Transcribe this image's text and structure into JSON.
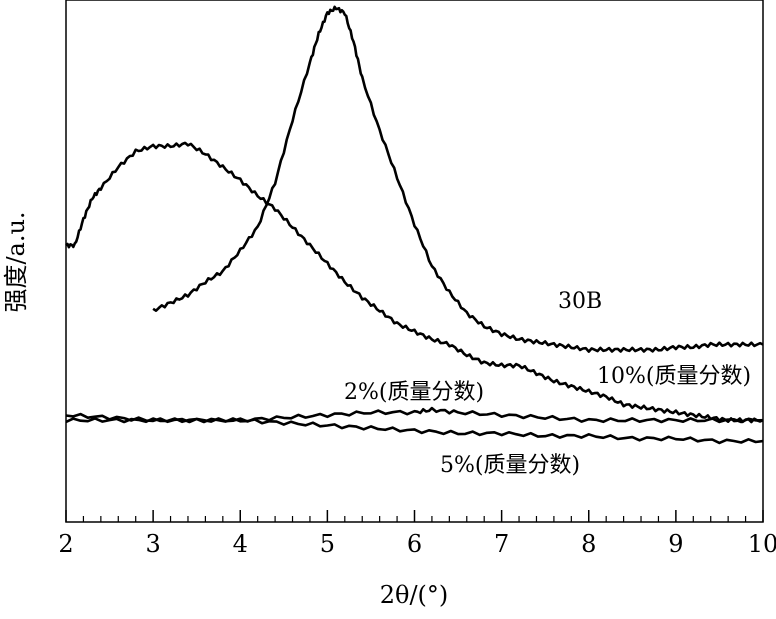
{
  "chart_data": {
    "type": "line",
    "xlabel": "2θ/(°)",
    "ylabel": "强度/a.u.",
    "xlim": [
      2,
      10
    ],
    "ylim": [
      0,
      100
    ],
    "x_ticks": [
      2,
      3,
      4,
      5,
      6,
      7,
      8,
      9,
      10
    ],
    "x_tick_labels": [
      "2",
      "3",
      "4",
      "5",
      "6",
      "7",
      "8",
      "9",
      "10"
    ],
    "grid": false,
    "legend": "inline labels",
    "line_color": "#000000",
    "series": [
      {
        "name": "30B",
        "x": [
          2.0,
          2.1,
          2.2,
          2.3,
          2.4,
          2.6,
          2.8,
          3.0,
          3.2,
          3.4,
          3.6,
          3.8,
          4.0,
          4.2,
          4.4,
          4.6,
          4.8,
          5.0,
          5.2,
          5.4,
          5.6,
          5.8,
          6.0,
          6.2,
          6.4,
          6.6,
          6.8,
          7.0,
          7.2,
          7.4,
          7.6,
          7.8,
          8.0,
          8.2,
          8.4,
          8.6,
          8.8,
          9.0,
          9.2,
          9.4,
          9.6,
          9.8,
          10.0
        ],
        "y": [
          53.0,
          53.0,
          58.0,
          62.0,
          64.0,
          68.0,
          71.0,
          72.0,
          72.0,
          72.5,
          70.5,
          68.0,
          65.5,
          62.5,
          60.0,
          56.5,
          53.0,
          49.5,
          46.0,
          43.0,
          40.5,
          38.0,
          36.5,
          35.0,
          34.0,
          32.0,
          30.5,
          30.0,
          30.0,
          28.5,
          27.0,
          26.0,
          25.0,
          24.0,
          22.5,
          22.0,
          21.5,
          21.0,
          20.5,
          20.0,
          19.5,
          19.5,
          19.5
        ]
      },
      {
        "name": "10%(质量分数)",
        "x": [
          3.0,
          3.2,
          3.4,
          3.6,
          3.8,
          4.0,
          4.2,
          4.4,
          4.6,
          4.8,
          4.9,
          5.0,
          5.1,
          5.2,
          5.3,
          5.4,
          5.6,
          5.8,
          6.0,
          6.2,
          6.4,
          6.6,
          6.8,
          7.0,
          7.2,
          7.4,
          7.6,
          7.8,
          8.0,
          8.2,
          8.4,
          8.6,
          8.8,
          9.0,
          9.2,
          9.4,
          9.6,
          9.8,
          10.0
        ],
        "y": [
          40.5,
          42.0,
          43.5,
          46.0,
          48.0,
          52.0,
          56.5,
          65.0,
          77.0,
          88.0,
          93.5,
          97.5,
          98.5,
          97.5,
          92.0,
          85.0,
          75.0,
          66.0,
          57.0,
          49.0,
          44.0,
          40.0,
          37.5,
          36.0,
          35.0,
          34.5,
          34.0,
          33.5,
          33.0,
          33.0,
          33.0,
          33.0,
          33.0,
          33.5,
          33.5,
          34.0,
          34.0,
          34.0,
          34.0
        ]
      },
      {
        "name": "2%(质量分数)",
        "x": [
          2.0,
          2.5,
          3.0,
          3.5,
          4.0,
          4.5,
          5.0,
          5.5,
          6.0,
          6.2,
          6.5,
          7.0,
          7.5,
          8.0,
          8.5,
          9.0,
          9.5,
          10.0
        ],
        "y": [
          20.5,
          20.0,
          19.5,
          19.5,
          19.5,
          20.0,
          20.5,
          21.0,
          21.0,
          21.5,
          21.0,
          20.5,
          20.0,
          19.5,
          19.5,
          19.5,
          19.5,
          19.5
        ]
      },
      {
        "name": "5%(质量分数)",
        "x": [
          2.0,
          2.5,
          3.0,
          3.5,
          4.0,
          4.5,
          5.0,
          5.5,
          6.0,
          6.5,
          7.0,
          7.5,
          8.0,
          8.5,
          9.0,
          9.5,
          10.0
        ],
        "y": [
          19.5,
          19.5,
          19.5,
          19.5,
          19.5,
          19.0,
          18.5,
          18.0,
          17.5,
          17.0,
          17.0,
          16.5,
          16.5,
          16.0,
          16.0,
          15.5,
          15.5
        ]
      }
    ],
    "annotations": [
      {
        "text": "30B"
      },
      {
        "text": "10%(质量分数)"
      },
      {
        "text": "2%(质量分数)"
      },
      {
        "text": "5%(质量分数)"
      }
    ]
  }
}
